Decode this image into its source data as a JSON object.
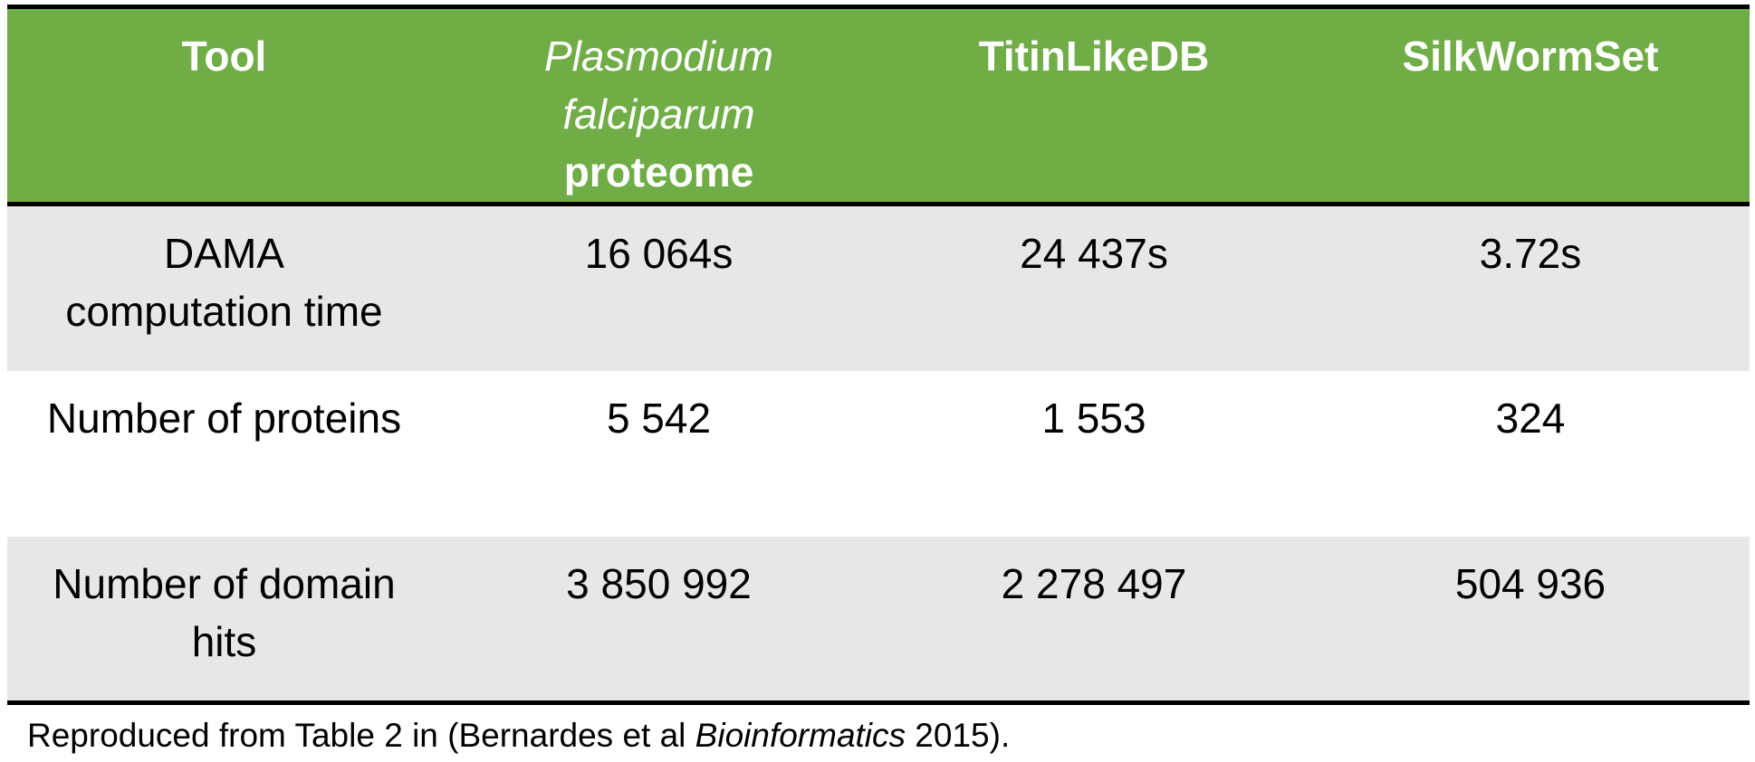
{
  "table": {
    "header": {
      "tool": "Tool",
      "pf_italic_line1": "Plasmodium",
      "pf_italic_line2": "falciparum",
      "pf_bold": "proteome",
      "titin": "TitinLikeDB",
      "silk": "SilkWormSet"
    },
    "rows": [
      {
        "label_line1": "DAMA",
        "label_line2": "computation time",
        "pf": "16 064s",
        "titin": "24 437s",
        "silk": "3.72s"
      },
      {
        "label_line1": "Number of proteins",
        "label_line2": "",
        "pf": "5 542",
        "titin": "1 553",
        "silk": "324"
      },
      {
        "label_line1": "Number of domain",
        "label_line2": "hits",
        "pf": "3 850 992",
        "titin": "2 278 497",
        "silk": "504 936"
      }
    ]
  },
  "caption": {
    "prefix": "Reproduced from Table 2 in (Bernardes et al ",
    "journal": "Bioinformatics",
    "suffix": " 2015)."
  },
  "colors": {
    "header_bg": "#70ad47",
    "band_bg": "#e7e7e7",
    "rule": "#000000"
  }
}
